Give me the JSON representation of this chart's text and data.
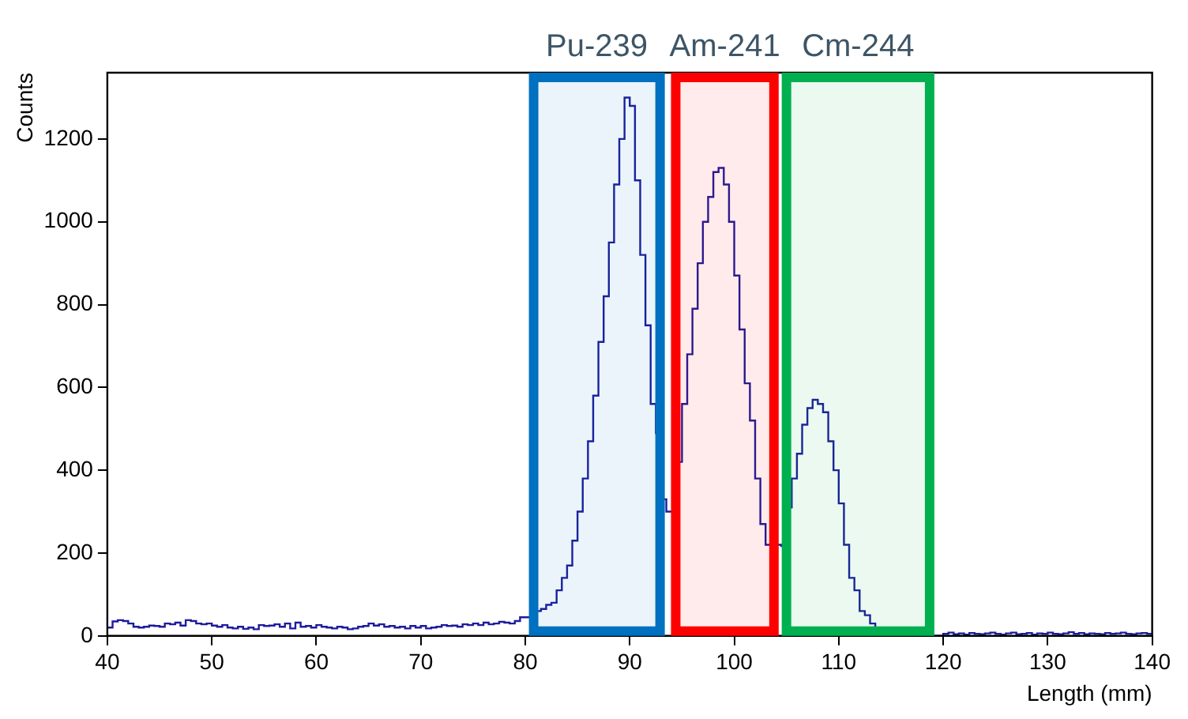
{
  "chart_data": {
    "type": "histogram",
    "xlabel": "Length (mm)",
    "ylabel": "Counts",
    "color": "#1c1c9c",
    "bins": [
      40,
      40.5,
      41,
      41.5,
      42,
      42.5,
      43,
      43.5,
      44,
      44.5,
      45,
      45.5,
      46,
      46.5,
      47,
      47.5,
      48,
      48.5,
      49,
      49.5,
      50,
      50.5,
      51,
      51.5,
      52,
      52.5,
      53,
      53.5,
      54,
      54.5,
      55,
      55.5,
      56,
      56.5,
      57,
      57.5,
      58,
      58.5,
      59,
      59.5,
      60,
      60.5,
      61,
      61.5,
      62,
      62.5,
      63,
      63.5,
      64,
      64.5,
      65,
      65.5,
      66,
      66.5,
      67,
      67.5,
      68,
      68.5,
      69,
      69.5,
      70,
      70.5,
      71,
      71.5,
      72,
      72.5,
      73,
      73.5,
      74,
      74.5,
      75,
      75.5,
      76,
      76.5,
      77,
      77.5,
      78,
      78.5,
      79,
      79.5,
      80,
      80.5,
      81,
      81.5,
      82,
      82.5,
      83,
      83.5,
      84,
      84.5,
      85,
      85.5,
      86,
      86.5,
      87,
      87.5,
      88,
      88.5,
      89,
      89.5,
      90,
      90.5,
      91,
      91.5,
      92,
      92.5,
      93,
      93.5,
      94,
      94.5,
      95,
      95.5,
      96,
      96.5,
      97,
      97.5,
      98,
      98.5,
      99,
      99.5,
      100,
      100.5,
      101,
      101.5,
      102,
      102.5,
      103,
      103.5,
      104,
      104.5,
      105,
      105.5,
      106,
      106.5,
      107,
      107.5,
      108,
      108.5,
      109,
      109.5,
      110,
      110.5,
      111,
      111.5,
      112,
      112.5,
      113,
      113.5,
      114,
      114.5,
      115,
      115.5,
      116,
      116.5,
      117,
      117.5,
      118,
      118.5,
      119,
      119.5,
      120,
      120.5,
      121,
      121.5,
      122,
      122.5,
      123,
      123.5,
      124,
      124.5,
      125,
      125.5,
      126,
      126.5,
      127,
      127.5,
      128,
      128.5,
      129,
      129.5,
      130,
      130.5,
      131,
      131.5,
      132,
      132.5,
      133,
      133.5,
      134,
      134.5,
      135,
      135.5,
      136,
      136.5,
      137,
      137.5,
      138,
      138.5,
      139,
      139.5,
      140
    ],
    "values": [
      20,
      35,
      38,
      36,
      30,
      22,
      20,
      22,
      25,
      24,
      22,
      30,
      28,
      32,
      25,
      38,
      36,
      30,
      28,
      30,
      25,
      22,
      26,
      20,
      18,
      22,
      17,
      20,
      16,
      26,
      24,
      25,
      28,
      22,
      30,
      18,
      32,
      22,
      24,
      20,
      26,
      22,
      20,
      18,
      22,
      20,
      16,
      18,
      22,
      24,
      30,
      25,
      28,
      22,
      24,
      20,
      22,
      18,
      24,
      20,
      24,
      18,
      20,
      22,
      26,
      24,
      25,
      22,
      28,
      26,
      30,
      26,
      32,
      28,
      30,
      34,
      32,
      30,
      36,
      45,
      45,
      55,
      60,
      65,
      75,
      80,
      110,
      140,
      170,
      230,
      300,
      380,
      470,
      580,
      710,
      820,
      950,
      1090,
      1200,
      1300,
      1280,
      1100,
      920,
      750,
      560,
      490,
      330,
      300,
      300,
      420,
      560,
      680,
      790,
      900,
      1000,
      1060,
      1120,
      1130,
      1090,
      1000,
      870,
      740,
      610,
      520,
      380,
      270,
      220,
      230,
      220,
      217,
      310,
      380,
      440,
      510,
      550,
      570,
      560,
      540,
      470,
      400,
      320,
      220,
      140,
      110,
      60,
      50,
      30,
      20,
      10,
      5,
      3,
      2,
      2,
      1,
      1,
      0,
      0,
      0,
      0,
      0,
      5,
      8,
      4,
      6,
      3,
      7,
      5,
      4,
      6,
      8,
      5,
      3,
      6,
      8,
      4,
      5,
      7,
      3,
      6,
      5,
      8,
      5,
      4,
      6,
      9,
      5,
      7,
      4,
      6,
      5,
      4,
      7,
      5,
      6,
      8,
      5,
      4,
      6,
      7,
      5
    ],
    "xlim": [
      40,
      140
    ],
    "xticks": [
      40,
      50,
      60,
      70,
      80,
      90,
      100,
      110,
      120,
      130,
      140
    ],
    "ylim": [
      0,
      1360
    ],
    "yticks": [
      0,
      200,
      400,
      600,
      800,
      1000,
      1200
    ],
    "grid": false,
    "legend": false,
    "bands": [
      {
        "axis": "x",
        "from": 80.8,
        "to": 92.9,
        "label": "Pu-239",
        "color": "#0070c0"
      },
      {
        "axis": "x",
        "from": 94.4,
        "to": 103.8,
        "label": "Am-241",
        "color": "#ff0000"
      },
      {
        "axis": "x",
        "from": 105.0,
        "to": 118.7,
        "label": "Cm-244",
        "color": "#00b050"
      }
    ]
  }
}
